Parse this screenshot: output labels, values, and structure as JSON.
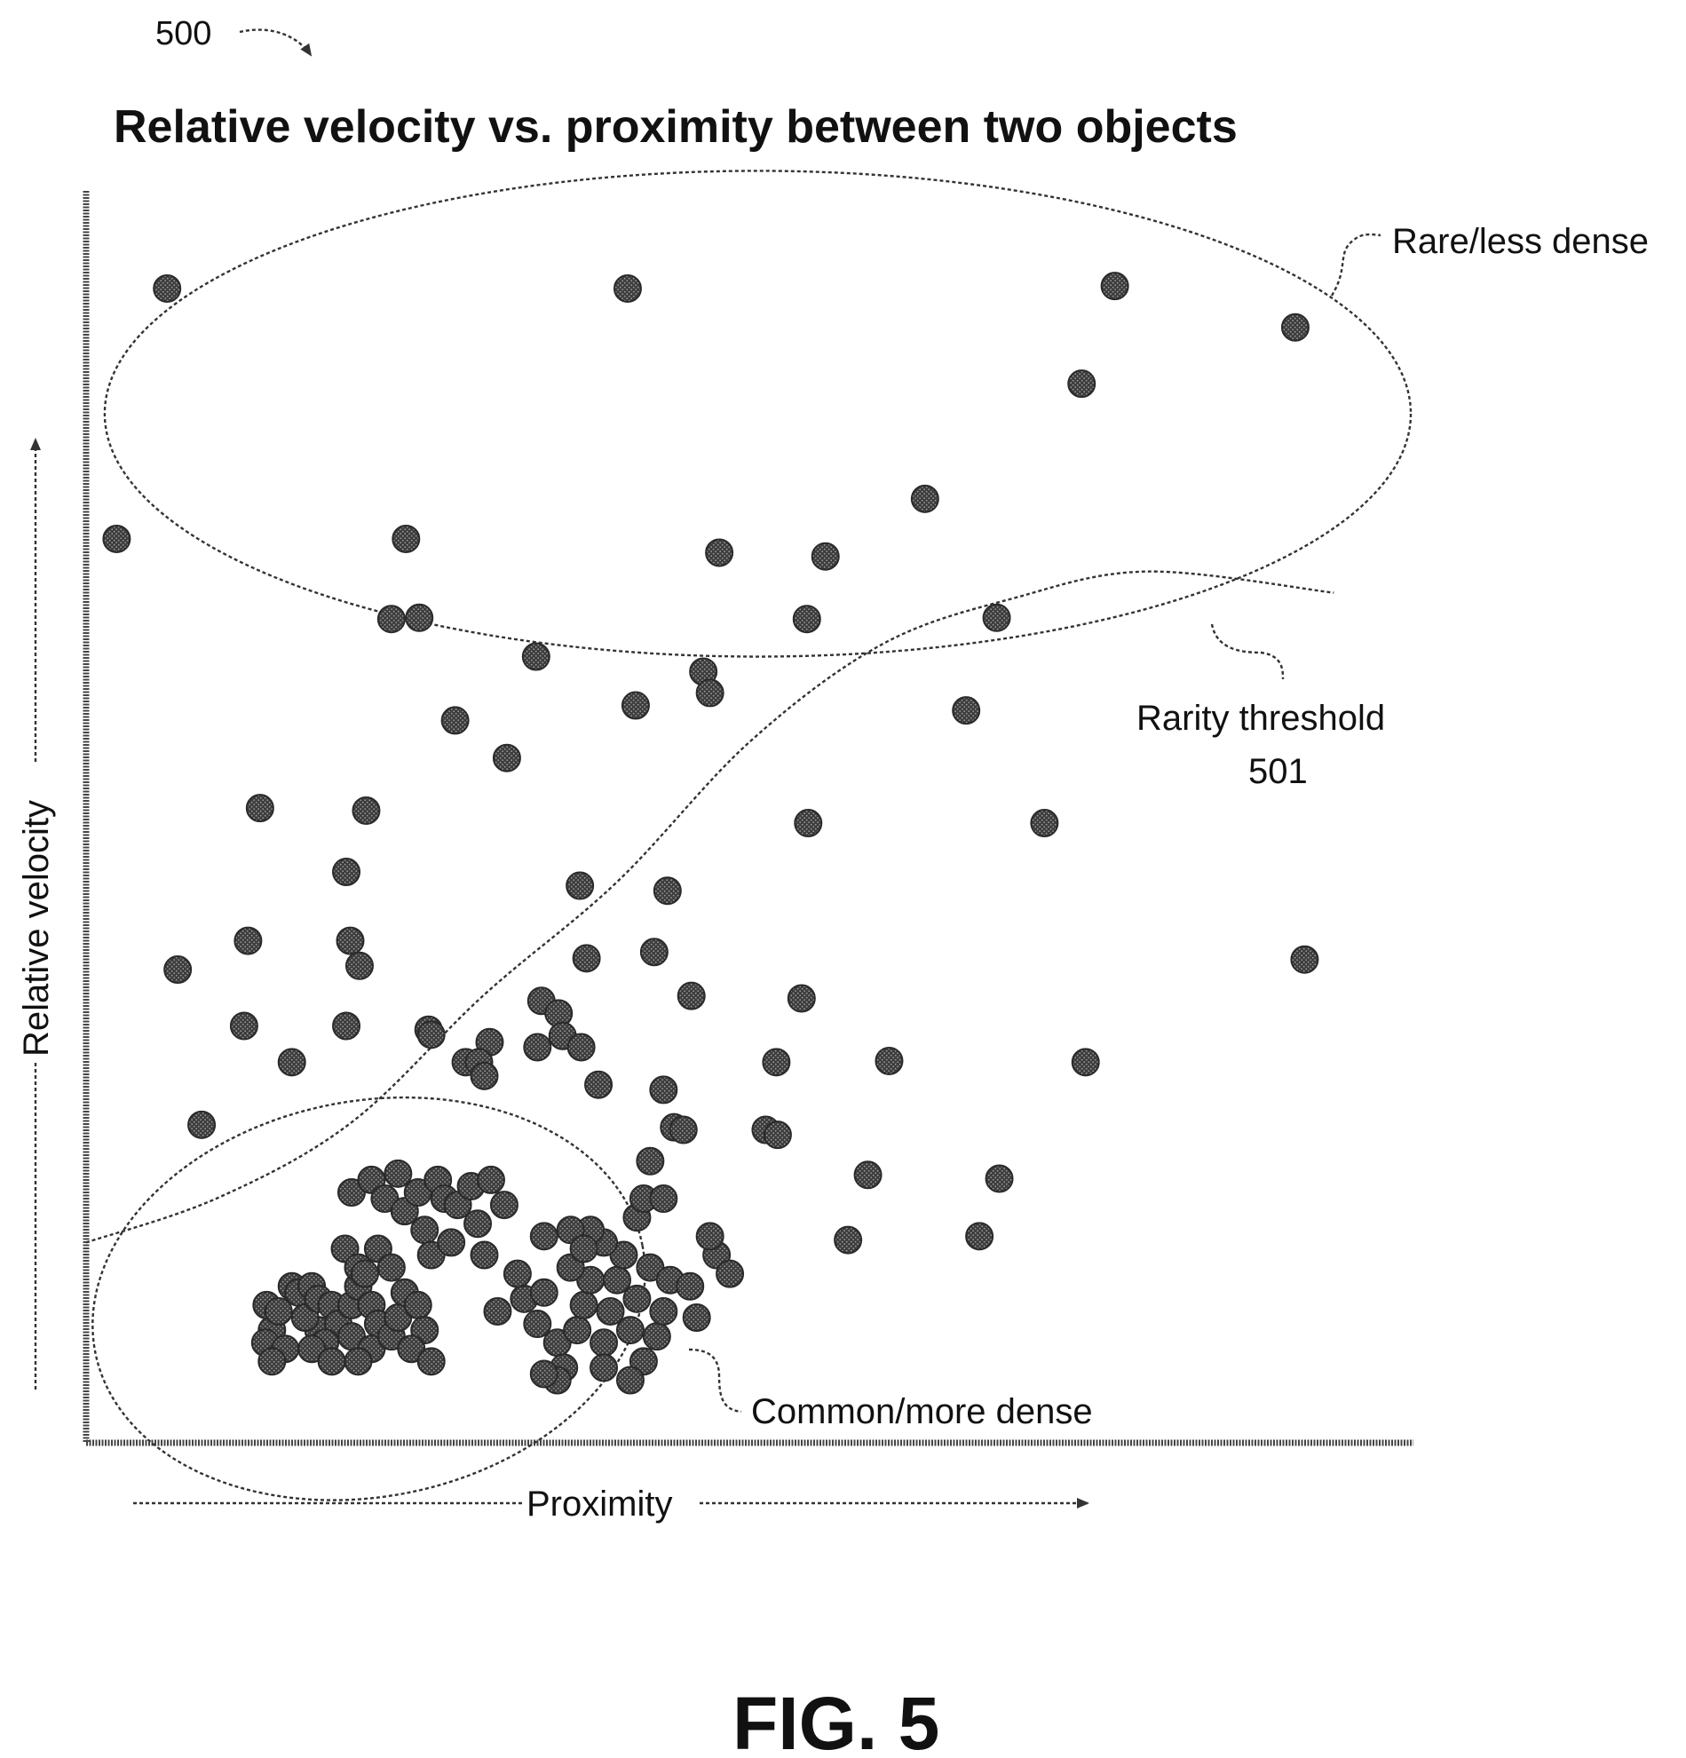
{
  "figure": {
    "ref_number": "500",
    "fig_label": "FIG. 5"
  },
  "colors": {
    "ink": "#111111",
    "dot_fill": "#3c3c3c",
    "background": "#ffffff"
  },
  "chart_data": {
    "type": "scatter",
    "title": "Relative velocity vs. proximity between two objects",
    "xlabel": "Proximity",
    "ylabel": "Relative velocity",
    "xlim": [
      0,
      100
    ],
    "ylim": [
      0,
      100
    ],
    "grid": false,
    "ticks": false,
    "annotations": {
      "rare": "Rare/less dense",
      "common": "Common/more dense",
      "threshold_line1": "Rarity threshold",
      "threshold_line2": "501"
    },
    "threshold_curve": [
      [
        0,
        16
      ],
      [
        10,
        19.6
      ],
      [
        20,
        25.6
      ],
      [
        30,
        35.8
      ],
      [
        40,
        44.8
      ],
      [
        50,
        56
      ],
      [
        60,
        63.8
      ],
      [
        70,
        67.5
      ],
      [
        80,
        69.6
      ],
      [
        94,
        67.9
      ]
    ],
    "regions": [
      {
        "name": "rare",
        "cx": 50.6,
        "cy": 82.2,
        "rx": 49.2,
        "ry": 19.4
      },
      {
        "name": "common",
        "cx": 21.3,
        "cy": 11.5,
        "rx": 21.0,
        "ry": 15.8,
        "rotation": -11
      }
    ],
    "points": [
      [
        6.1,
        92.2
      ],
      [
        40.8,
        92.2
      ],
      [
        77.5,
        92.4
      ],
      [
        91.1,
        89.1
      ],
      [
        75.0,
        84.6
      ],
      [
        63.2,
        75.4
      ],
      [
        2.3,
        72.2
      ],
      [
        24.1,
        72.2
      ],
      [
        47.7,
        71.1
      ],
      [
        55.7,
        70.8
      ],
      [
        23.0,
        65.8
      ],
      [
        25.1,
        65.9
      ],
      [
        54.3,
        65.8
      ],
      [
        68.6,
        65.9
      ],
      [
        33.9,
        62.8
      ],
      [
        46.5,
        61.6
      ],
      [
        47.0,
        59.9
      ],
      [
        41.4,
        58.9
      ],
      [
        66.3,
        58.5
      ],
      [
        27.8,
        57.7
      ],
      [
        31.7,
        54.7
      ],
      [
        13.1,
        50.7
      ],
      [
        21.1,
        50.5
      ],
      [
        72.2,
        49.5
      ],
      [
        54.4,
        49.5
      ],
      [
        19.6,
        45.6
      ],
      [
        37.2,
        44.5
      ],
      [
        43.8,
        44.1
      ],
      [
        12.2,
        40.1
      ],
      [
        19.9,
        40.1
      ],
      [
        20.6,
        38.1
      ],
      [
        37.7,
        38.7
      ],
      [
        42.8,
        39.2
      ],
      [
        91.8,
        38.6
      ],
      [
        6.9,
        37.8
      ],
      [
        45.6,
        35.7
      ],
      [
        53.9,
        35.5
      ],
      [
        34.3,
        35.3
      ],
      [
        35.6,
        34.3
      ],
      [
        35.9,
        32.5
      ],
      [
        11.9,
        33.3
      ],
      [
        19.6,
        33.3
      ],
      [
        25.8,
        33.0
      ],
      [
        26.0,
        32.6
      ],
      [
        30.4,
        32.0
      ],
      [
        34.0,
        31.6
      ],
      [
        37.3,
        31.6
      ],
      [
        15.5,
        30.4
      ],
      [
        28.6,
        30.4
      ],
      [
        29.6,
        30.4
      ],
      [
        52.0,
        30.4
      ],
      [
        60.5,
        30.5
      ],
      [
        75.3,
        30.4
      ],
      [
        30.0,
        29.3
      ],
      [
        38.6,
        28.6
      ],
      [
        43.5,
        28.2
      ],
      [
        8.7,
        25.4
      ],
      [
        44.3,
        25.2
      ],
      [
        45.0,
        25.0
      ],
      [
        51.2,
        25.0
      ],
      [
        52.1,
        24.6
      ],
      [
        58.9,
        21.4
      ],
      [
        68.8,
        21.1
      ],
      [
        57.4,
        16.2
      ],
      [
        67.3,
        16.5
      ],
      [
        13.6,
        11.0
      ],
      [
        14.0,
        9.0
      ],
      [
        15.5,
        12.5
      ],
      [
        16.0,
        12.0
      ],
      [
        17.0,
        12.5
      ],
      [
        13.5,
        8.0
      ],
      [
        15.0,
        7.5
      ],
      [
        14.0,
        6.5
      ],
      [
        17.5,
        9.0
      ],
      [
        16.5,
        10.0
      ],
      [
        17.5,
        11.5
      ],
      [
        18.5,
        11.0
      ],
      [
        19.0,
        9.5
      ],
      [
        18.0,
        8.0
      ],
      [
        17.0,
        7.5
      ],
      [
        18.5,
        6.5
      ],
      [
        20.0,
        8.5
      ],
      [
        20.0,
        11.0
      ],
      [
        20.5,
        12.5
      ],
      [
        21.5,
        11.0
      ],
      [
        22.0,
        9.5
      ],
      [
        21.5,
        7.5
      ],
      [
        20.5,
        6.5
      ],
      [
        23.0,
        8.5
      ],
      [
        23.5,
        10.0
      ],
      [
        24.0,
        12.0
      ],
      [
        25.0,
        11.0
      ],
      [
        25.5,
        9.0
      ],
      [
        24.5,
        7.5
      ],
      [
        26.0,
        6.5
      ],
      [
        19.5,
        15.5
      ],
      [
        20.5,
        14.0
      ],
      [
        22.0,
        15.5
      ],
      [
        23.0,
        14.0
      ],
      [
        21.0,
        13.5
      ],
      [
        20.0,
        20.0
      ],
      [
        21.5,
        21.0
      ],
      [
        22.5,
        19.5
      ],
      [
        23.5,
        21.5
      ],
      [
        24.0,
        18.5
      ],
      [
        25.0,
        20.0
      ],
      [
        26.5,
        21.0
      ],
      [
        27.0,
        19.5
      ],
      [
        25.5,
        17.0
      ],
      [
        26.0,
        15.0
      ],
      [
        28.0,
        19.0
      ],
      [
        29.0,
        20.5
      ],
      [
        29.5,
        17.5
      ],
      [
        27.5,
        16.0
      ],
      [
        30.0,
        15.0
      ],
      [
        31.5,
        19.0
      ],
      [
        30.5,
        21.0
      ],
      [
        31.0,
        10.5
      ],
      [
        33.0,
        11.5
      ],
      [
        32.5,
        13.5
      ],
      [
        34.5,
        12.0
      ],
      [
        34.0,
        9.5
      ],
      [
        35.5,
        8.0
      ],
      [
        36.0,
        6.0
      ],
      [
        37.0,
        9.0
      ],
      [
        37.5,
        11.0
      ],
      [
        38.0,
        13.0
      ],
      [
        36.5,
        14.0
      ],
      [
        39.0,
        8.0
      ],
      [
        39.5,
        10.5
      ],
      [
        40.0,
        13.0
      ],
      [
        41.0,
        9.0
      ],
      [
        41.5,
        11.5
      ],
      [
        42.0,
        6.5
      ],
      [
        43.0,
        8.5
      ],
      [
        43.5,
        10.5
      ],
      [
        42.5,
        14.0
      ],
      [
        44.0,
        13.0
      ],
      [
        40.5,
        15.0
      ],
      [
        39.0,
        16.0
      ],
      [
        38.0,
        17.0
      ],
      [
        36.5,
        17.0
      ],
      [
        37.5,
        15.5
      ],
      [
        35.5,
        5.0
      ],
      [
        34.5,
        5.5
      ],
      [
        39.0,
        6.0
      ],
      [
        41.0,
        5.0
      ],
      [
        45.5,
        12.5
      ],
      [
        46.0,
        10.0
      ],
      [
        47.5,
        15.0
      ],
      [
        48.5,
        13.5
      ],
      [
        47.0,
        16.5
      ],
      [
        41.5,
        18.0
      ],
      [
        42.0,
        19.5
      ],
      [
        43.5,
        19.5
      ],
      [
        42.5,
        22.5
      ],
      [
        34.5,
        16.5
      ],
      [
        14.5,
        10.5
      ]
    ]
  }
}
